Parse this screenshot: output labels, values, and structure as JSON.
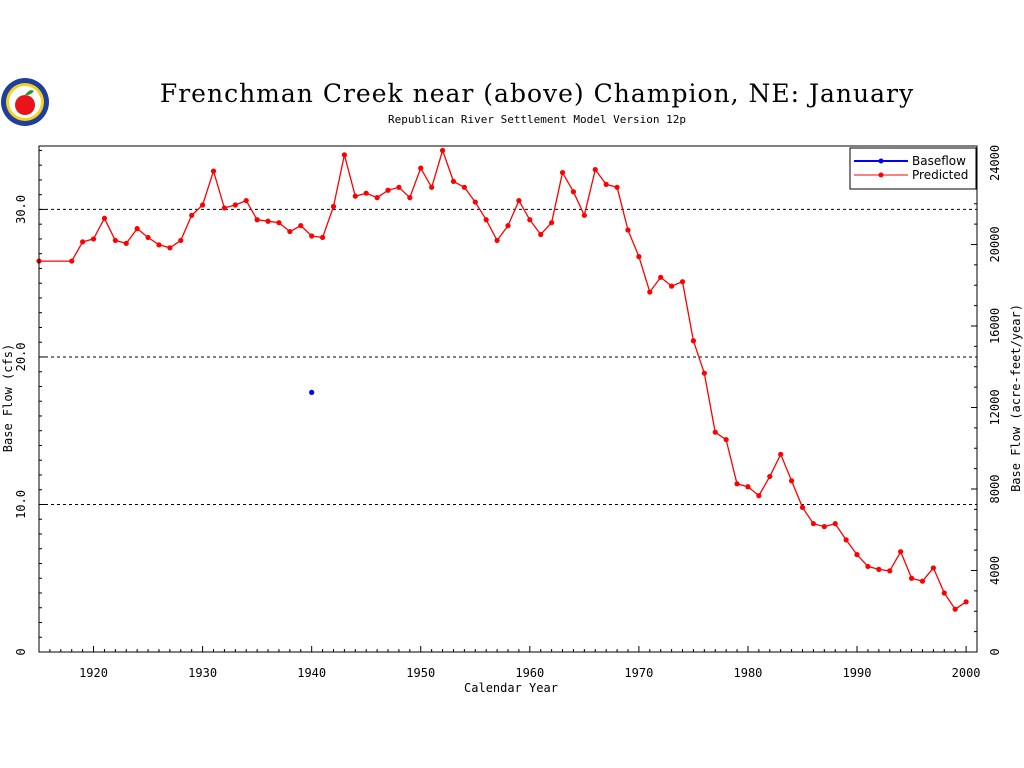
{
  "chart_data": {
    "type": "line",
    "title": "Frenchman Creek near (above) Champion, NE: January",
    "subtitle": "Republican River Settlement Model Version 12p",
    "xlabel": "Calendar Year",
    "ylabel": "Base Flow (cfs)",
    "y2label": "Base Flow (acre-feet/year)",
    "xlim": [
      1915,
      2001
    ],
    "ylim": [
      0,
      34.3
    ],
    "y2lim": [
      0,
      24833
    ],
    "x_ticks": [
      1920,
      1930,
      1940,
      1950,
      1960,
      1970,
      1980,
      1990,
      2000
    ],
    "y_ticks": [
      0,
      10,
      20,
      30
    ],
    "y_tick_labels": [
      "0",
      "10.0",
      "20.0",
      "30.0"
    ],
    "y2_ticks": [
      0,
      4000,
      8000,
      12000,
      16000,
      20000,
      24000
    ],
    "y2_tick_labels": [
      "0",
      "4000",
      "8000",
      "12000",
      "16000",
      "20000",
      "24000"
    ],
    "grid": "horizontal dashed at 10, 20, 30",
    "legend_position": "top-right",
    "series": [
      {
        "name": "Baseflow",
        "color": "#0000ff",
        "x": [
          1940
        ],
        "y": [
          17.6
        ]
      },
      {
        "name": "Predicted",
        "color": "#ff0000",
        "x": [
          1915,
          1918,
          1919,
          1920,
          1921,
          1922,
          1923,
          1924,
          1925,
          1926,
          1927,
          1928,
          1929,
          1930,
          1931,
          1932,
          1933,
          1934,
          1935,
          1936,
          1937,
          1938,
          1939,
          1940,
          1941,
          1942,
          1943,
          1944,
          1945,
          1946,
          1947,
          1948,
          1949,
          1950,
          1951,
          1952,
          1953,
          1954,
          1955,
          1956,
          1957,
          1958,
          1959,
          1960,
          1961,
          1962,
          1963,
          1964,
          1965,
          1966,
          1967,
          1968,
          1969,
          1970,
          1971,
          1972,
          1973,
          1974,
          1975,
          1976,
          1977,
          1978,
          1979,
          1980,
          1981,
          1982,
          1983,
          1984,
          1985,
          1986,
          1987,
          1988,
          1989,
          1990,
          1991,
          1992,
          1993,
          1994,
          1995,
          1996,
          1997,
          1998,
          1999,
          2000
        ],
        "y": [
          26.5,
          26.5,
          27.8,
          28.0,
          29.4,
          27.9,
          27.7,
          28.7,
          28.1,
          27.6,
          27.4,
          27.9,
          29.6,
          30.3,
          32.6,
          30.1,
          30.3,
          30.6,
          29.3,
          29.2,
          29.1,
          28.5,
          28.9,
          28.2,
          28.1,
          30.2,
          33.7,
          30.9,
          31.1,
          30.8,
          31.3,
          31.5,
          30.8,
          32.8,
          31.5,
          34.0,
          31.9,
          31.5,
          30.5,
          29.3,
          27.9,
          28.9,
          30.6,
          29.3,
          28.3,
          29.1,
          32.5,
          31.2,
          29.6,
          32.7,
          31.7,
          31.5,
          28.6,
          26.8,
          24.4,
          25.4,
          24.8,
          25.1,
          21.1,
          18.9,
          14.9,
          14.4,
          11.4,
          11.2,
          10.6,
          11.9,
          13.4,
          11.6,
          9.8,
          8.7,
          8.5,
          8.7,
          7.6,
          6.6,
          5.8,
          5.6,
          5.5,
          6.8,
          5.0,
          4.8,
          5.7,
          4.0,
          2.9,
          3.4
        ]
      }
    ]
  },
  "logo_icon": "apple-logo-icon"
}
